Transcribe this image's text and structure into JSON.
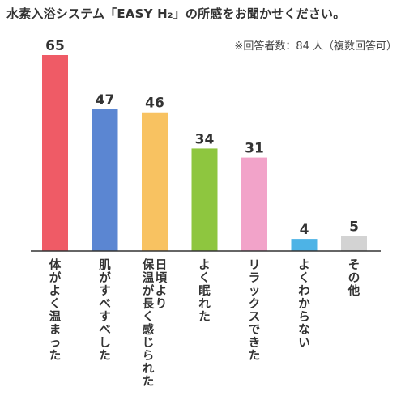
{
  "chart_data": {
    "type": "bar",
    "title": "水素入浴システム「EASY H₂」の所感をお聞かせください。",
    "subtitle": "※回答者数：84 人（複数回答可）",
    "categories": [
      "体がよく温まった",
      "肌がすべすべした",
      "日頃より保温が長く感じられた",
      "よく眠れた",
      "リラックスできた",
      "よくわからない",
      "その他"
    ],
    "category_label_columns": [
      [
        "体がよく温まった"
      ],
      [
        "肌がすべすべした"
      ],
      [
        "日頃より",
        "保温が長く感じられた"
      ],
      [
        "よく眠れた"
      ],
      [
        "リラックスできた"
      ],
      [
        "よくわからない"
      ],
      [
        "その他"
      ]
    ],
    "values": [
      65,
      47,
      46,
      34,
      31,
      4,
      5
    ],
    "colors": [
      "#ef5b66",
      "#5b86d2",
      "#f8c261",
      "#8ec63f",
      "#f2a3c9",
      "#4db3e6",
      "#d3d3d3"
    ],
    "ylim": [
      0,
      65
    ],
    "grid": false,
    "legend": "none",
    "xlabel": "",
    "ylabel": ""
  }
}
